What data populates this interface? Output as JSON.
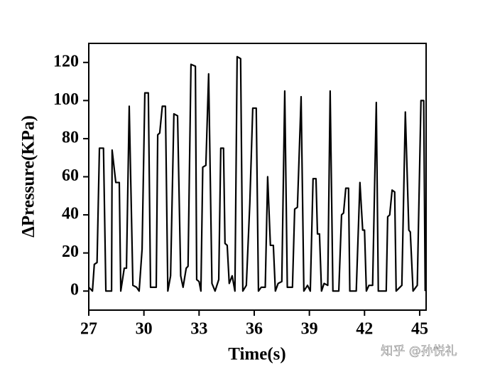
{
  "chart_data": {
    "type": "line",
    "x_label": "Time(s)",
    "y_label": "ΔPressure(KPa)",
    "annotation": "知乎 @孙悦礼",
    "color": "#000000",
    "xlim": [
      27,
      45.35
    ],
    "xticks": [
      27,
      30,
      33,
      36,
      39,
      42,
      45
    ],
    "ylim": [
      -10,
      130
    ],
    "yticks": [
      0,
      20,
      40,
      60,
      80,
      100,
      120
    ],
    "x": [
      27,
      27.2,
      27.3,
      27.45,
      27.58,
      27.8,
      27.93,
      28.24,
      28.27,
      28.47,
      28.66,
      28.74,
      28.93,
      29.05,
      29.2,
      29.4,
      29.6,
      29.74,
      29.9,
      30.05,
      30.24,
      30.36,
      30.67,
      30.75,
      30.86,
      31.0,
      31.17,
      31.3,
      31.45,
      31.63,
      31.83,
      32.0,
      32.13,
      32.3,
      32.4,
      32.56,
      32.8,
      32.87,
      33.0,
      33.1,
      33.2,
      33.37,
      33.52,
      33.7,
      33.87,
      34.07,
      34.18,
      34.33,
      34.41,
      34.53,
      34.64,
      34.8,
      34.95,
      35.07,
      35.26,
      35.38,
      35.57,
      35.76,
      35.92,
      36.11,
      36.23,
      36.38,
      36.6,
      36.73,
      36.88,
      37.04,
      37.15,
      37.3,
      37.5,
      37.66,
      37.8,
      38.08,
      38.2,
      38.35,
      38.55,
      38.7,
      38.9,
      39.05,
      39.2,
      39.36,
      39.44,
      39.55,
      39.66,
      39.8,
      40.0,
      40.13,
      40.28,
      40.6,
      40.75,
      40.86,
      40.98,
      41.13,
      41.2,
      41.55,
      41.75,
      41.9,
      42.0,
      42.1,
      42.24,
      42.44,
      42.64,
      42.75,
      43.18,
      43.26,
      43.37,
      43.5,
      43.64,
      43.72,
      44.03,
      44.22,
      44.41,
      44.49,
      44.64,
      44.87,
      45.07,
      45.22,
      45.3
    ],
    "values": [
      2,
      0,
      14,
      15,
      75,
      75,
      0,
      0,
      74,
      57,
      57,
      0,
      12,
      12,
      97,
      3,
      2,
      0,
      22,
      104,
      104,
      2,
      2,
      82,
      83,
      97,
      97,
      0,
      8,
      93,
      92,
      8,
      2,
      12,
      13,
      119,
      118,
      6,
      5,
      0,
      65,
      66,
      114,
      4,
      0,
      6,
      75,
      75,
      25,
      24,
      4,
      8,
      0,
      123,
      122,
      0,
      3,
      46,
      96,
      96,
      0,
      2,
      2,
      60,
      24,
      24,
      0,
      4,
      5,
      105,
      2,
      2,
      43,
      44,
      102,
      0,
      3,
      0,
      59,
      59,
      30,
      30,
      0,
      4,
      3,
      105,
      0,
      0,
      40,
      41,
      54,
      54,
      0,
      0,
      57,
      32,
      32,
      0,
      3,
      3,
      99,
      0,
      0,
      39,
      40,
      53,
      52,
      0,
      3,
      94,
      32,
      31,
      0,
      3,
      100,
      100,
      0
    ]
  }
}
